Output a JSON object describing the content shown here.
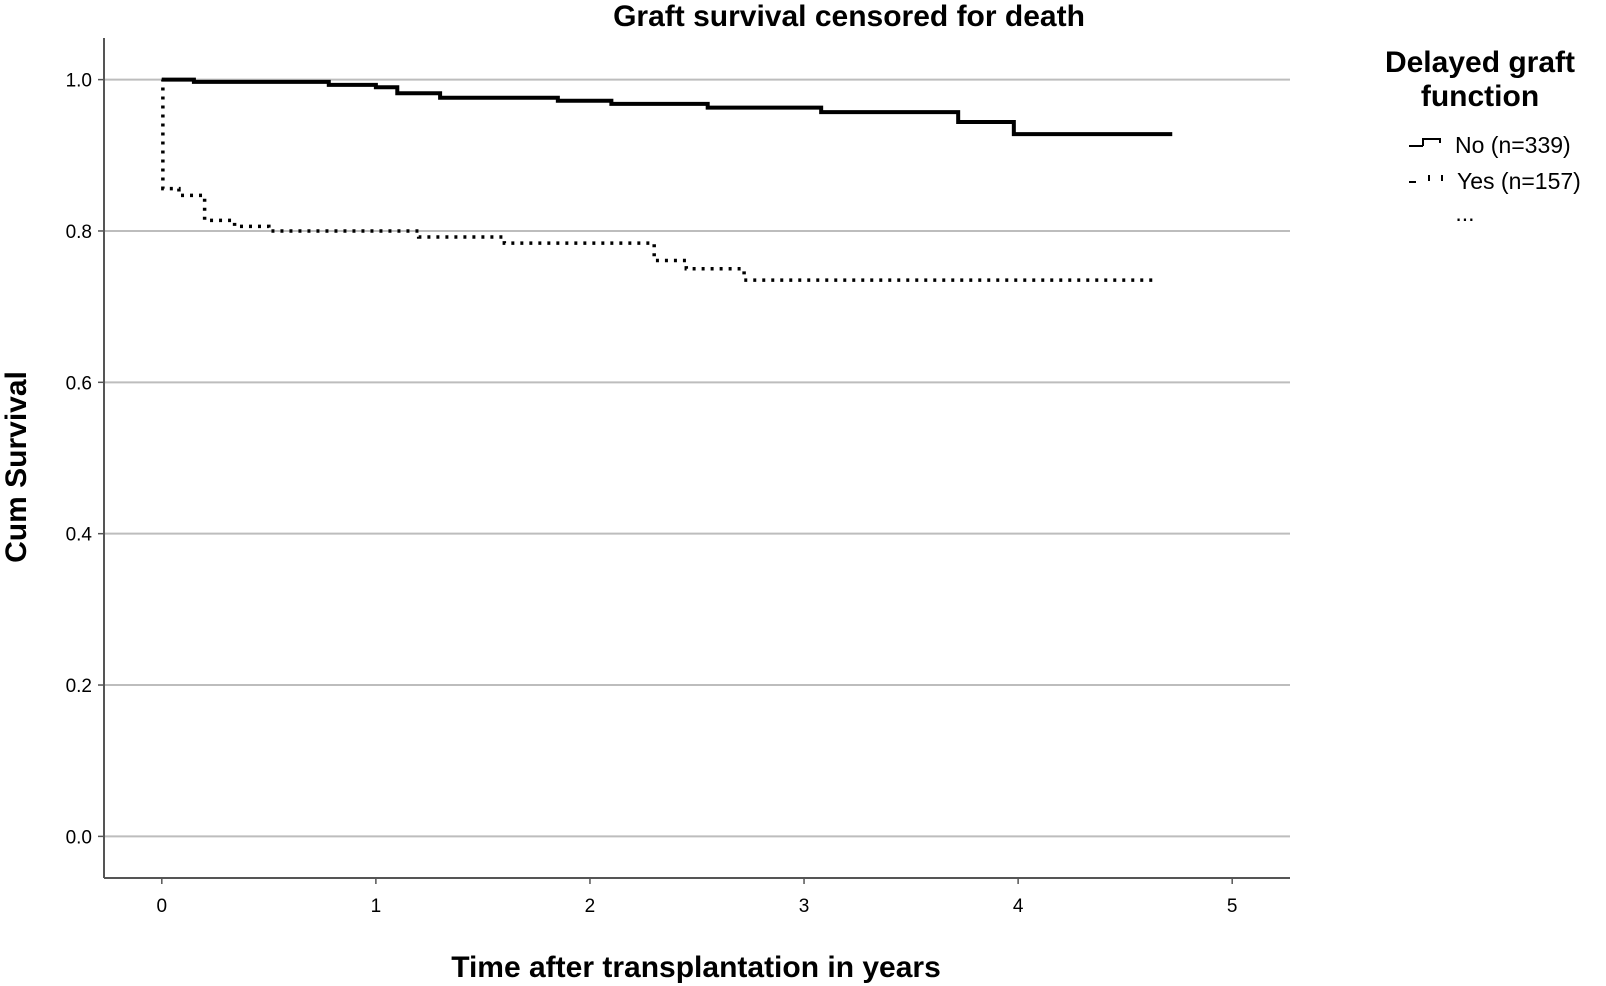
{
  "chart_data": {
    "type": "line",
    "step": true,
    "title": "Graft survival censored for death",
    "xlabel": "Time after transplantation in years",
    "ylabel": "Cum Survival",
    "xlim": [
      -0.27,
      5.27
    ],
    "ylim": [
      -0.055,
      1.055
    ],
    "xticks": [
      "0",
      "1",
      "2",
      "3",
      "4",
      "5"
    ],
    "yticks": [
      "0.0",
      "0.2",
      "0.4",
      "0.6",
      "0.8",
      "1.0"
    ],
    "grid": "horizontal",
    "legend": {
      "title_lines": [
        "Delayed graft",
        "function"
      ],
      "placement": "right",
      "items": [
        "No (n=339)",
        "Yes (n=157)"
      ],
      "more": "..."
    },
    "series": [
      {
        "name": "No (n=339)",
        "style": "solid",
        "color": "#000000",
        "x": [
          0,
          0.15,
          0.78,
          1.0,
          1.1,
          1.3,
          1.85,
          2.1,
          2.55,
          3.08,
          3.72,
          3.98,
          4.72
        ],
        "y": [
          1.0,
          0.997,
          0.993,
          0.99,
          0.982,
          0.976,
          0.972,
          0.968,
          0.963,
          0.957,
          0.944,
          0.928,
          0.928
        ]
      },
      {
        "name": "Yes (n=157)",
        "style": "dotted",
        "color": "#000000",
        "x": [
          0,
          0.005,
          0.08,
          0.2,
          0.34,
          0.5,
          1.2,
          1.6,
          2.3,
          2.45,
          2.72,
          4.65
        ],
        "y": [
          1.0,
          0.856,
          0.847,
          0.814,
          0.806,
          0.8,
          0.792,
          0.784,
          0.761,
          0.75,
          0.735,
          0.735
        ]
      }
    ]
  }
}
